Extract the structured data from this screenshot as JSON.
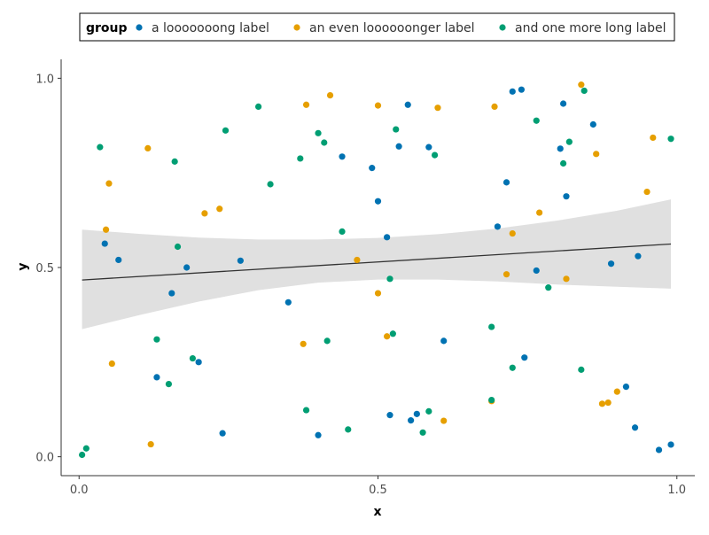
{
  "chart_data": {
    "type": "scatter",
    "xlabel": "x",
    "ylabel": "y",
    "xlim": [
      -0.03,
      1.03
    ],
    "ylim": [
      -0.05,
      1.05
    ],
    "x_ticks": [
      0.0,
      0.5,
      1.0
    ],
    "y_ticks": [
      0.0,
      0.5,
      1.0
    ],
    "x_tick_labels": [
      "0.0",
      "0.5",
      "1.0"
    ],
    "y_tick_labels": [
      "0.0",
      "0.5",
      "1.0"
    ],
    "grid": false,
    "legend": {
      "title": "group",
      "placement": "top"
    },
    "series": [
      {
        "name": "a looooooong label",
        "color": "#0072B2",
        "points": [
          [
            0.043,
            0.563
          ],
          [
            0.066,
            0.52
          ],
          [
            0.13,
            0.21
          ],
          [
            0.155,
            0.432
          ],
          [
            0.18,
            0.5
          ],
          [
            0.2,
            0.25
          ],
          [
            0.24,
            0.062
          ],
          [
            0.27,
            0.518
          ],
          [
            0.35,
            0.408
          ],
          [
            0.4,
            0.057
          ],
          [
            0.44,
            0.793
          ],
          [
            0.49,
            0.763
          ],
          [
            0.5,
            0.675
          ],
          [
            0.515,
            0.58
          ],
          [
            0.52,
            0.11
          ],
          [
            0.535,
            0.82
          ],
          [
            0.55,
            0.93
          ],
          [
            0.555,
            0.096
          ],
          [
            0.565,
            0.113
          ],
          [
            0.585,
            0.818
          ],
          [
            0.61,
            0.306
          ],
          [
            0.7,
            0.608
          ],
          [
            0.715,
            0.725
          ],
          [
            0.725,
            0.965
          ],
          [
            0.74,
            0.97
          ],
          [
            0.745,
            0.262
          ],
          [
            0.765,
            0.492
          ],
          [
            0.805,
            0.814
          ],
          [
            0.81,
            0.933
          ],
          [
            0.815,
            0.688
          ],
          [
            0.86,
            0.878
          ],
          [
            0.89,
            0.51
          ],
          [
            0.915,
            0.185
          ],
          [
            0.93,
            0.077
          ],
          [
            0.935,
            0.53
          ],
          [
            0.97,
            0.018
          ],
          [
            0.99,
            0.032
          ]
        ]
      },
      {
        "name": "an even loooooonger label",
        "color": "#E69F00",
        "points": [
          [
            0.045,
            0.6
          ],
          [
            0.05,
            0.722
          ],
          [
            0.055,
            0.246
          ],
          [
            0.115,
            0.815
          ],
          [
            0.12,
            0.033
          ],
          [
            0.21,
            0.643
          ],
          [
            0.235,
            0.655
          ],
          [
            0.375,
            0.298
          ],
          [
            0.38,
            0.93
          ],
          [
            0.42,
            0.955
          ],
          [
            0.465,
            0.52
          ],
          [
            0.5,
            0.432
          ],
          [
            0.5,
            0.928
          ],
          [
            0.515,
            0.318
          ],
          [
            0.6,
            0.922
          ],
          [
            0.61,
            0.095
          ],
          [
            0.69,
            0.147
          ],
          [
            0.695,
            0.925
          ],
          [
            0.715,
            0.482
          ],
          [
            0.725,
            0.59
          ],
          [
            0.77,
            0.645
          ],
          [
            0.815,
            0.47
          ],
          [
            0.84,
            0.983
          ],
          [
            0.865,
            0.8
          ],
          [
            0.875,
            0.14
          ],
          [
            0.885,
            0.143
          ],
          [
            0.9,
            0.172
          ],
          [
            0.95,
            0.7
          ],
          [
            0.96,
            0.843
          ]
        ]
      },
      {
        "name": "and one more long label",
        "color": "#009E73",
        "points": [
          [
            0.005,
            0.005
          ],
          [
            0.012,
            0.022
          ],
          [
            0.035,
            0.818
          ],
          [
            0.13,
            0.31
          ],
          [
            0.15,
            0.192
          ],
          [
            0.16,
            0.78
          ],
          [
            0.165,
            0.555
          ],
          [
            0.19,
            0.26
          ],
          [
            0.245,
            0.862
          ],
          [
            0.3,
            0.925
          ],
          [
            0.32,
            0.72
          ],
          [
            0.37,
            0.788
          ],
          [
            0.38,
            0.123
          ],
          [
            0.4,
            0.855
          ],
          [
            0.41,
            0.83
          ],
          [
            0.415,
            0.306
          ],
          [
            0.44,
            0.595
          ],
          [
            0.45,
            0.072
          ],
          [
            0.52,
            0.47
          ],
          [
            0.525,
            0.325
          ],
          [
            0.53,
            0.865
          ],
          [
            0.575,
            0.064
          ],
          [
            0.585,
            0.12
          ],
          [
            0.595,
            0.797
          ],
          [
            0.69,
            0.343
          ],
          [
            0.69,
            0.15
          ],
          [
            0.725,
            0.235
          ],
          [
            0.765,
            0.888
          ],
          [
            0.785,
            0.447
          ],
          [
            0.81,
            0.775
          ],
          [
            0.82,
            0.832
          ],
          [
            0.84,
            0.23
          ],
          [
            0.845,
            0.967
          ],
          [
            0.99,
            0.84
          ]
        ]
      }
    ],
    "trend_line": {
      "x": [
        0.005,
        0.99
      ],
      "y": [
        0.467,
        0.562
      ]
    },
    "confidence_band": {
      "x": [
        0.005,
        0.1,
        0.2,
        0.3,
        0.4,
        0.5,
        0.6,
        0.7,
        0.8,
        0.9,
        0.99
      ],
      "upper": [
        0.6,
        0.589,
        0.579,
        0.574,
        0.574,
        0.578,
        0.588,
        0.603,
        0.624,
        0.65,
        0.68
      ],
      "lower": [
        0.337,
        0.374,
        0.41,
        0.44,
        0.46,
        0.468,
        0.468,
        0.463,
        0.455,
        0.449,
        0.444
      ]
    }
  }
}
